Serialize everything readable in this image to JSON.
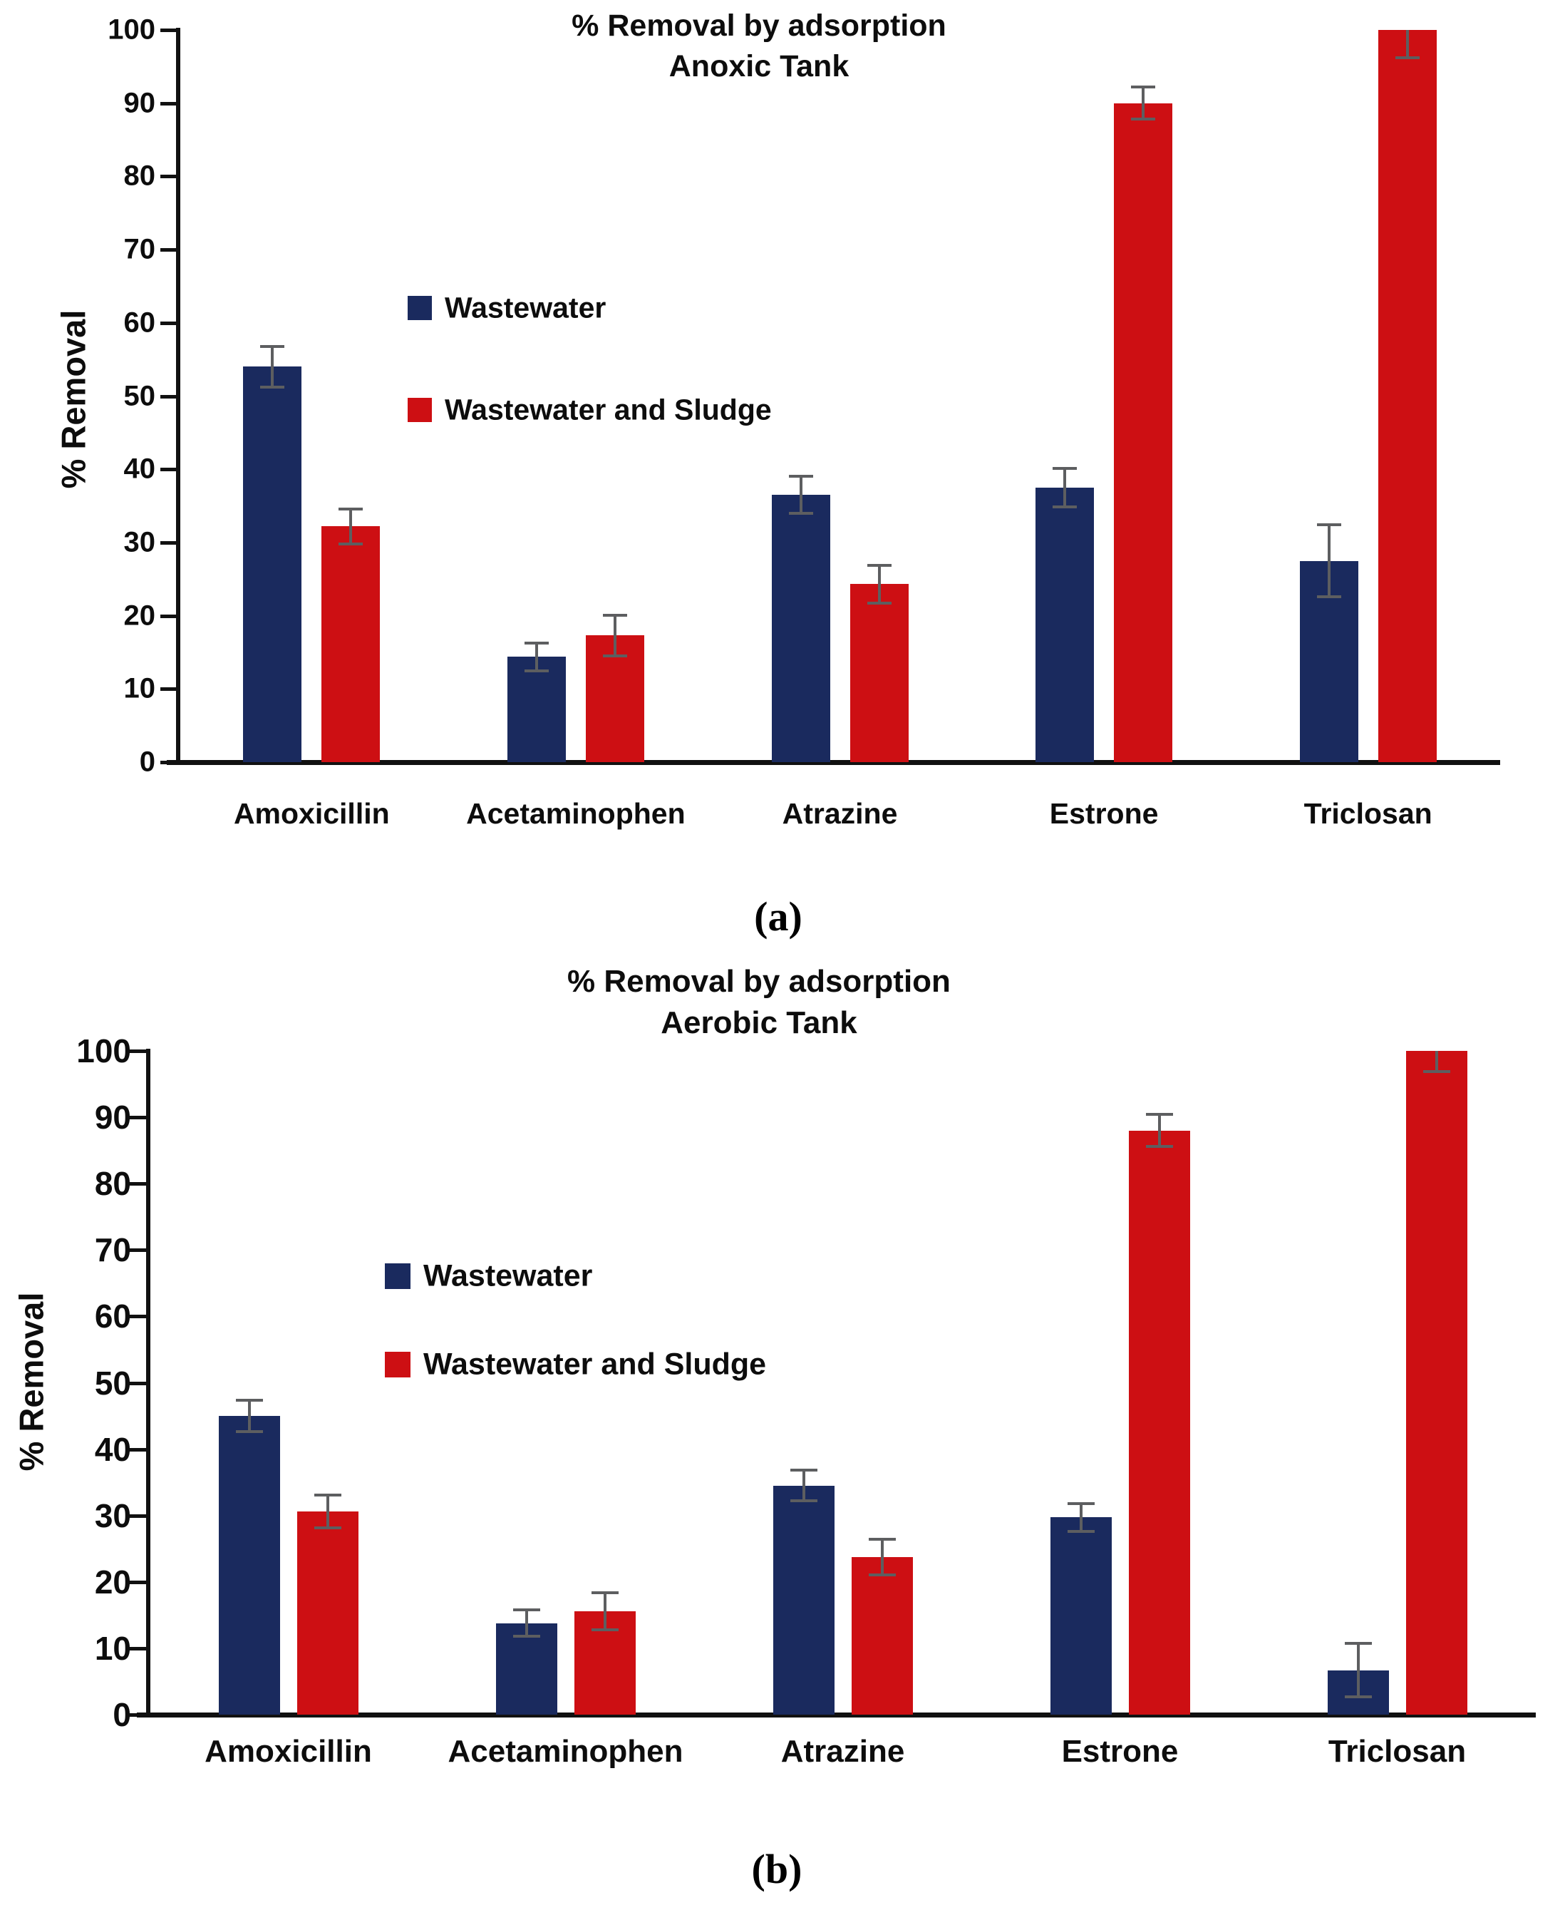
{
  "figure": {
    "captions": {
      "a": "(a)",
      "b": "(b)"
    }
  },
  "colors": {
    "wastewater": "#1a2a5e",
    "wastewater_and_sludge": "#cd0f13",
    "error_bar": "#5d5e60",
    "axis": "#111111",
    "text": "#0d0d0d"
  },
  "chart_data": [
    {
      "type": "bar",
      "title": "% Removal by adsorption",
      "subtitle": "Anoxic Tank",
      "ylabel": "% Removal",
      "ylim": [
        0,
        100
      ],
      "ytick_step": 10,
      "grid": false,
      "legend_position": "inside-upper-left",
      "categories": [
        "Amoxicillin",
        "Acetaminophen",
        "Atrazine",
        "Estrone",
        "Triclosan"
      ],
      "series": [
        {
          "name": "Wastewater",
          "color_key": "wastewater",
          "values": [
            54,
            14.4,
            36.5,
            37.5,
            27.5
          ],
          "errors": [
            2.8,
            1.9,
            2.5,
            2.6,
            4.9
          ]
        },
        {
          "name": "Wastewater and Sludge",
          "color_key": "wastewater_and_sludge",
          "values": [
            32.2,
            17.3,
            24.3,
            90,
            100
          ],
          "errors": [
            2.4,
            2.8,
            2.6,
            2.2,
            3.8
          ]
        }
      ]
    },
    {
      "type": "bar",
      "title": "% Removal by adsorption",
      "subtitle": "Aerobic Tank",
      "ylabel": "% Removal",
      "ylim": [
        0,
        100
      ],
      "ytick_step": 10,
      "grid": false,
      "legend_position": "inside-upper-left",
      "categories": [
        "Amoxicillin",
        "Acetaminophen",
        "Atrazine",
        "Estrone",
        "Triclosan"
      ],
      "series": [
        {
          "name": "Wastewater",
          "color_key": "wastewater",
          "values": [
            45,
            13.8,
            34.5,
            29.7,
            6.7
          ],
          "errors": [
            2.4,
            2.0,
            2.3,
            2.1,
            4.0
          ]
        },
        {
          "name": "Wastewater and Sludge",
          "color_key": "wastewater_and_sludge",
          "values": [
            30.6,
            15.6,
            23.7,
            88,
            100
          ],
          "errors": [
            2.5,
            2.8,
            2.7,
            2.4,
            3.1
          ]
        }
      ]
    }
  ]
}
